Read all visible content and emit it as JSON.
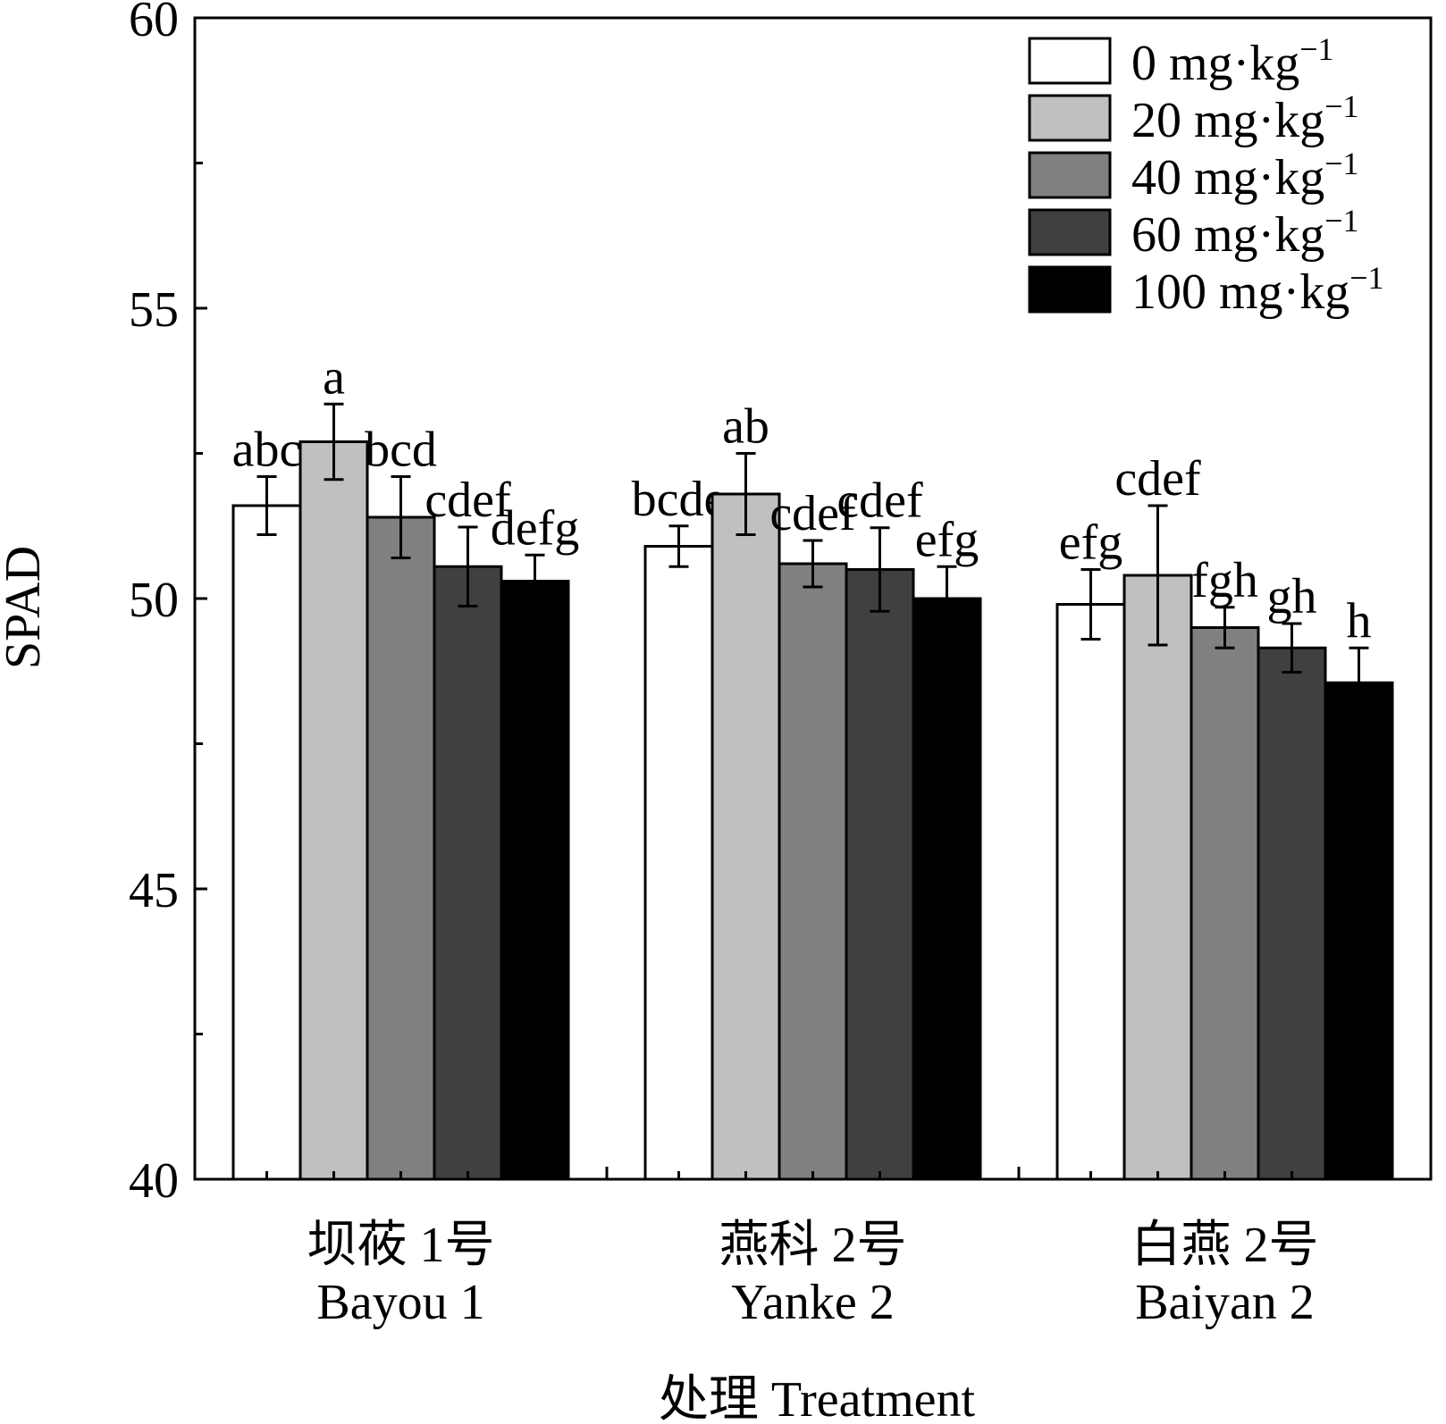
{
  "chart_data": {
    "type": "bar",
    "title": "",
    "xlabel": "处理 Treatment",
    "ylabel": "SPAD",
    "ylim": [
      40,
      60
    ],
    "yticks": [
      40,
      45,
      50,
      55,
      60
    ],
    "grid": false,
    "legend_position": "top-right",
    "categories": [
      {
        "line1": "坝莜 1号",
        "line2": "Bayou 1"
      },
      {
        "line1": "燕科 2号",
        "line2": "Yanke 2"
      },
      {
        "line1": "白燕 2号",
        "line2": "Baiyan 2"
      }
    ],
    "series": [
      {
        "name": "0 mg·kg",
        "sup": "−1",
        "color": "#ffffff",
        "values": [
          51.6,
          50.9,
          49.9
        ],
        "errors": [
          0.5,
          0.35,
          0.6
        ],
        "labels": [
          "abc",
          "bcde",
          "efg"
        ]
      },
      {
        "name": "20 mg·kg",
        "sup": "−1",
        "color": "#c0c0c0",
        "values": [
          52.7,
          51.8,
          50.4
        ],
        "errors": [
          0.65,
          0.7,
          1.2
        ],
        "labels": [
          "a",
          "ab",
          "cdef"
        ]
      },
      {
        "name": "40 mg·kg",
        "sup": "−1",
        "color": "#808080",
        "values": [
          51.4,
          50.6,
          49.5
        ],
        "errors": [
          0.7,
          0.4,
          0.35
        ],
        "labels": [
          "bcd",
          "cdef",
          "fgh"
        ]
      },
      {
        "name": "60 mg·kg",
        "sup": "−1",
        "color": "#404040",
        "values": [
          50.55,
          50.5,
          49.15
        ],
        "errors": [
          0.68,
          0.72,
          0.42
        ],
        "labels": [
          "cdef",
          "cdef",
          "gh"
        ]
      },
      {
        "name": "100 mg·kg",
        "sup": "−1",
        "color": "#000000",
        "values": [
          50.3,
          50.0,
          48.55
        ],
        "errors": [
          0.45,
          0.55,
          0.6
        ],
        "labels": [
          "defg",
          "efg",
          "h"
        ]
      }
    ]
  }
}
